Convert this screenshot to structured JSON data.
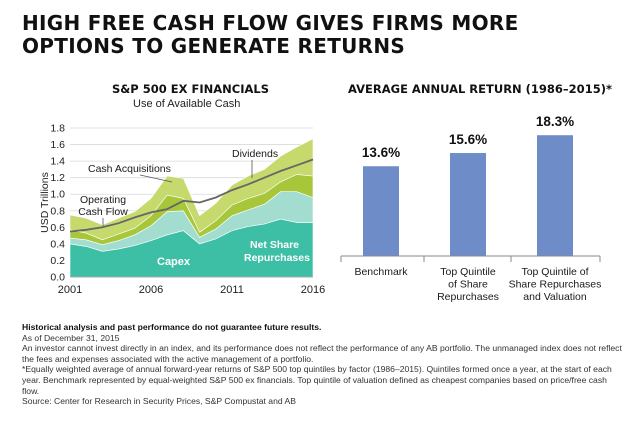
{
  "title": "HIGH FREE CASH FLOW GIVES FIRMS MORE OPTIONS TO GENERATE RETURNS",
  "chart_data": [
    {
      "type": "area",
      "title": "S&P 500 EX FINANCIALS",
      "subtitle": "Use of Available Cash",
      "ylabel": "USD Trillions",
      "xlabel": "",
      "ylim": [
        0.0,
        1.8
      ],
      "yticks": [
        "0.0",
        "0.2",
        "0.4",
        "0.6",
        "0.8",
        "1.0",
        "1.2",
        "1.4",
        "1.6",
        "1.8"
      ],
      "xticks": [
        "2001",
        "2006",
        "2011",
        "2016"
      ],
      "grid": true,
      "x": [
        2001,
        2002,
        2003,
        2004,
        2005,
        2006,
        2007,
        2008,
        2009,
        2010,
        2011,
        2012,
        2013,
        2014,
        2015,
        2016
      ],
      "series": [
        {
          "name": "Capex",
          "color": "#3dbfa6",
          "values": [
            0.4,
            0.37,
            0.31,
            0.34,
            0.38,
            0.44,
            0.51,
            0.56,
            0.4,
            0.46,
            0.56,
            0.61,
            0.64,
            0.7,
            0.66,
            0.66
          ]
        },
        {
          "name": "Net Share Repurchases",
          "color": "#a3ddd0",
          "values": [
            0.07,
            0.08,
            0.08,
            0.1,
            0.13,
            0.18,
            0.28,
            0.24,
            0.08,
            0.12,
            0.18,
            0.2,
            0.24,
            0.33,
            0.37,
            0.3
          ]
        },
        {
          "name": "Cash Acquisitions",
          "color": "#a8c63a",
          "values": [
            0.1,
            0.08,
            0.06,
            0.08,
            0.08,
            0.12,
            0.2,
            0.15,
            0.06,
            0.1,
            0.13,
            0.14,
            0.13,
            0.12,
            0.21,
            0.26
          ]
        },
        {
          "name": "Dividends",
          "color": "#c6d96d",
          "values": [
            0.18,
            0.18,
            0.18,
            0.19,
            0.2,
            0.21,
            0.23,
            0.24,
            0.2,
            0.21,
            0.24,
            0.27,
            0.29,
            0.31,
            0.33,
            0.45
          ]
        }
      ],
      "line": {
        "name": "Operating Cash Flow",
        "color": "#666666",
        "values": [
          0.55,
          0.57,
          0.6,
          0.65,
          0.72,
          0.78,
          0.82,
          0.92,
          0.9,
          0.96,
          1.05,
          1.12,
          1.2,
          1.28,
          1.35,
          1.42
        ]
      },
      "annotations": [
        "Cash Acquisitions",
        "Operating Cash Flow",
        "Dividends",
        "Net Share Repurchases",
        "Capex"
      ]
    },
    {
      "type": "bar",
      "title": "AVERAGE ANNUAL RETURN (1986–2015)*",
      "xlabel": "",
      "ylabel": "",
      "ylim": [
        0,
        20
      ],
      "grid": false,
      "bar_color": "#6e8cc8",
      "categories": [
        "Benchmark",
        "Top Quintile of Share Repurchases",
        "Top Quintile of Share Repurchases and Valuation"
      ],
      "category_lines": [
        [
          "Benchmark"
        ],
        [
          "Top Quintile",
          "of Share",
          "Repurchases"
        ],
        [
          "Top Quintile of",
          "Share Repurchases",
          "and Valuation"
        ]
      ],
      "values": [
        13.6,
        15.6,
        18.3
      ],
      "value_labels": [
        "13.6%",
        "15.6%",
        "18.3%"
      ]
    }
  ],
  "footnotes": {
    "disclaimer": "Historical analysis and past performance do not guarantee future results.",
    "as_of": "As of December 31, 2015",
    "index_note": "An investor cannot invest directly in an index, and its performance does not reflect the performance of any AB portfolio. The unmanaged index does not reflect the fees and expenses associated with the active management of a portfolio.",
    "method_note": "*Equally weighted average of annual forward-year returns of S&P 500 top quintiles by factor (1986–2015). Quintiles formed once a year, at the start of each year. Benchmark represented by equal-weighted S&P 500 ex financials. Top quintile of valuation defined as cheapest companies based on price/free cash flow.",
    "source": "Source: Center for Research in Security Prices, S&P Compustat and AB"
  }
}
